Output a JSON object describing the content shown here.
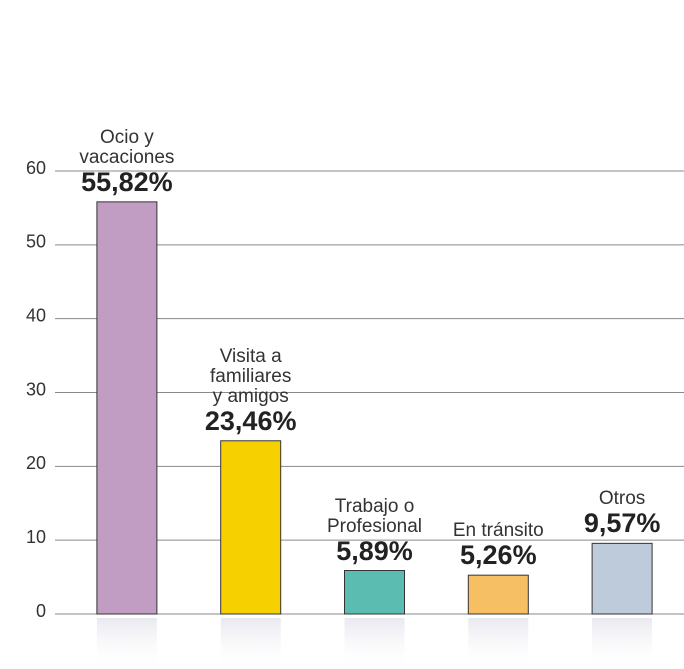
{
  "chart_data": {
    "type": "bar",
    "categories": [
      "Ocio y\nvacaciones",
      "Visita a\nfamiliares\ny amigos",
      "Trabajo o\nProfesional",
      "En tránsito",
      "Otros"
    ],
    "values": [
      55.82,
      23.46,
      5.89,
      5.26,
      9.57
    ],
    "value_labels": [
      "55,82%",
      "23,46%",
      "5,89%",
      "5,26%",
      "9,57%"
    ],
    "colors": [
      "#c29dc3",
      "#f7d000",
      "#5bbdb2",
      "#f6bf63",
      "#bdcbdb"
    ],
    "ylim": [
      0,
      60
    ],
    "yticks": [
      0,
      10,
      20,
      30,
      40,
      50,
      60
    ],
    "grid": true
  }
}
